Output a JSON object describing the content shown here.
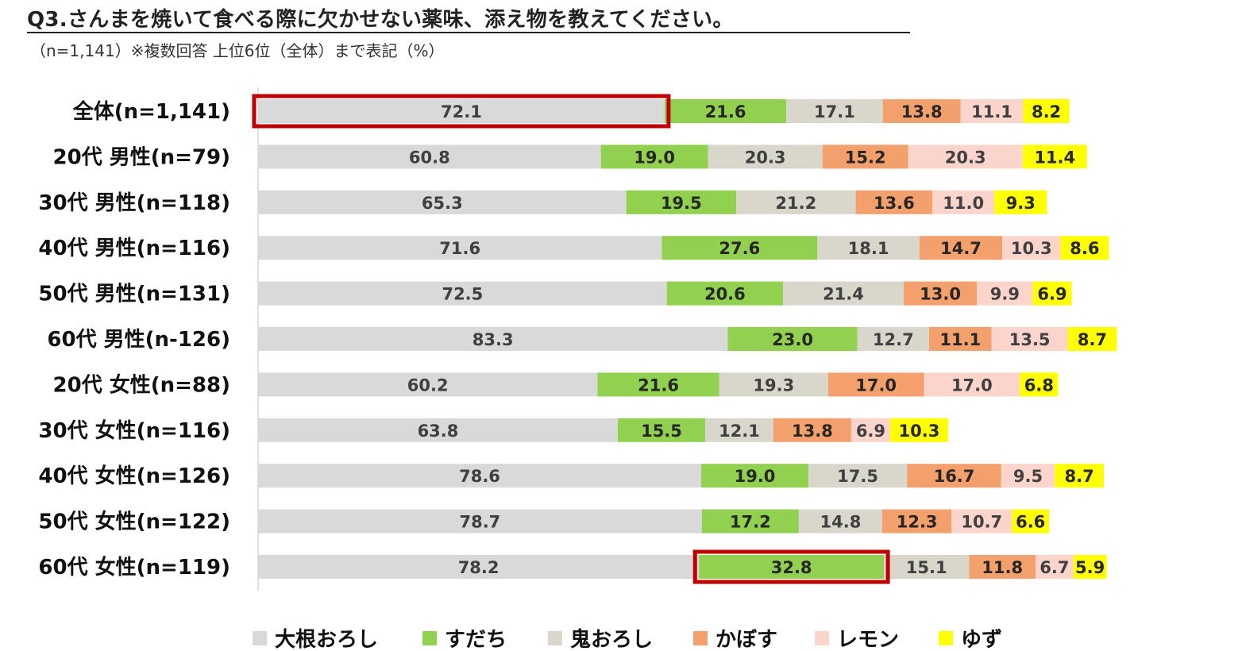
{
  "header": {
    "title": "Q3.さんまを焼いて食べる際に欠かせない薬味、添え物を教えてください。",
    "subtitle": "（n=1,141）※複数回答 上位6位（全体）まで表記（%）"
  },
  "chart_data": {
    "type": "bar",
    "orientation": "horizontal",
    "stacked": true,
    "title": "Q3.さんまを焼いて食べる際に欠かせない薬味、添え物を教えてください。",
    "subtitle": "（n=1,141）※複数回答 上位6位（全体）まで表記（%）",
    "unit": "%",
    "categories": [
      "全体(n=1,141)",
      "20代 男性(n=79)",
      "30代 男性(n=118)",
      "40代 男性(n=116)",
      "50代 男性(n=131)",
      "60代 男性(n-126)",
      "20代 女性(n=88)",
      "30代 女性(n=116)",
      "40代 女性(n=126)",
      "50代 女性(n=122)",
      "60代 女性(n=119)"
    ],
    "series": [
      {
        "name": "大根おろし",
        "color": "#d9d9d9",
        "label_color": "#404040",
        "values": [
          72.1,
          60.8,
          65.3,
          71.6,
          72.5,
          83.3,
          60.2,
          63.8,
          78.6,
          78.7,
          78.2
        ]
      },
      {
        "name": "すだち",
        "color": "#92d050",
        "label_color": "#262626",
        "values": [
          21.6,
          19.0,
          19.5,
          27.6,
          20.6,
          23.0,
          21.6,
          15.5,
          19.0,
          17.2,
          32.8
        ]
      },
      {
        "name": "鬼おろし",
        "color": "#d9d6cc",
        "label_color": "#404040",
        "values": [
          17.1,
          20.3,
          21.2,
          18.1,
          21.4,
          12.7,
          19.3,
          12.1,
          17.5,
          14.8,
          15.1
        ]
      },
      {
        "name": "かぼす",
        "color": "#f4a06c",
        "label_color": "#262626",
        "values": [
          13.8,
          15.2,
          13.6,
          14.7,
          13.0,
          11.1,
          17.0,
          13.8,
          16.7,
          12.3,
          11.8
        ]
      },
      {
        "name": "レモン",
        "color": "#fbd4cc",
        "label_color": "#404040",
        "values": [
          11.1,
          20.3,
          11.0,
          10.3,
          9.9,
          13.5,
          17.0,
          6.9,
          9.5,
          10.7,
          6.7
        ]
      },
      {
        "name": "ゆず",
        "color": "#ffff00",
        "label_color": "#262626",
        "values": [
          8.2,
          11.4,
          9.3,
          8.6,
          6.9,
          8.7,
          6.8,
          10.3,
          8.7,
          6.6,
          5.9
        ]
      }
    ],
    "highlights": [
      {
        "category_index": 0,
        "series_index": 0,
        "color": "#c00000"
      },
      {
        "category_index": 10,
        "series_index": 1,
        "color": "#c00000"
      }
    ],
    "legend_position": "bottom",
    "axis_line_color": "#bfbfbf",
    "grid": false
  }
}
